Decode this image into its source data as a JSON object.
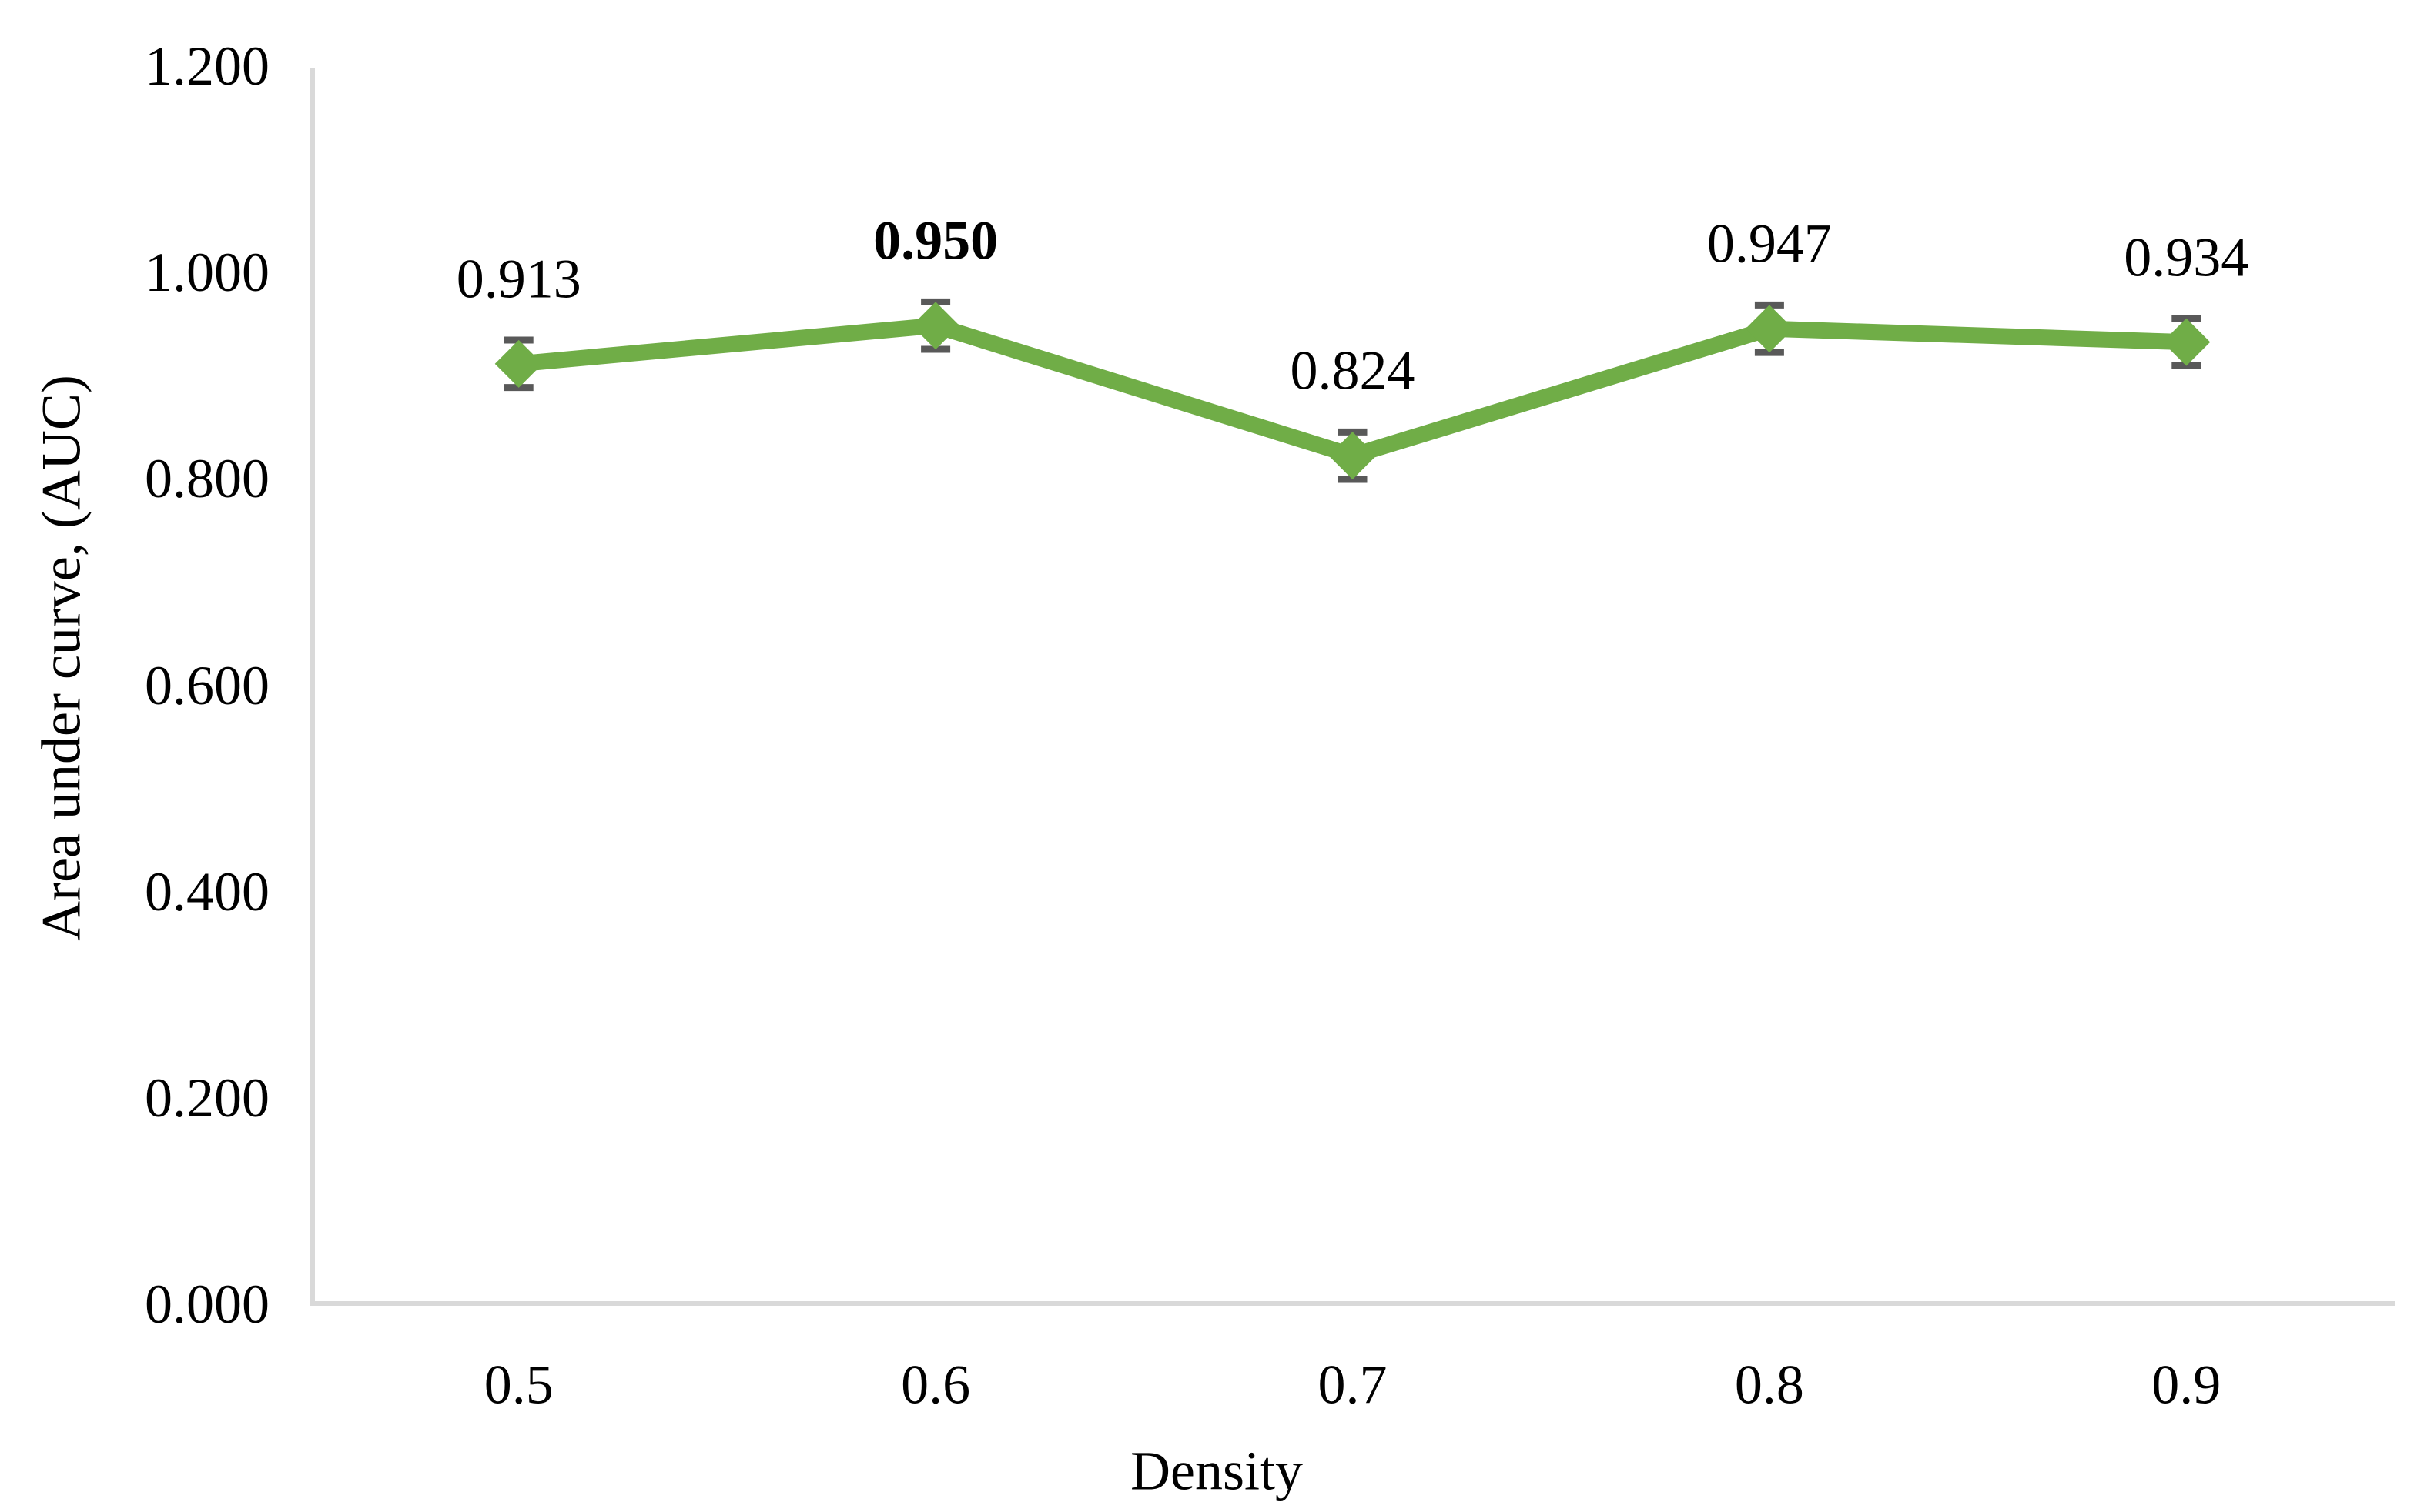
{
  "chart_data": {
    "type": "line",
    "title": "",
    "xlabel": "Density",
    "ylabel": "Area under curve, (AUC)",
    "categories": [
      "0.5",
      "0.6",
      "0.7",
      "0.8",
      "0.9"
    ],
    "series": [
      {
        "name": "AUC",
        "values": [
          0.913,
          0.95,
          0.824,
          0.947,
          0.934
        ],
        "data_labels": [
          "0.913",
          "0.950",
          "0.824",
          "0.947",
          "0.934"
        ],
        "bold_label_index": 1,
        "error_plus_minus": 0.023,
        "marker": "diamond"
      }
    ],
    "ylim": [
      0,
      1.2
    ],
    "ytick_labels": [
      "0.000",
      "0.200",
      "0.400",
      "0.600",
      "0.800",
      "1.000",
      "1.200"
    ],
    "grid": false,
    "legend": false,
    "colors": {
      "line": "#70AD47",
      "marker": "#70AD47",
      "error_bar": "#595959",
      "axis_line": "#D9D9D9",
      "text": "#000000"
    }
  }
}
